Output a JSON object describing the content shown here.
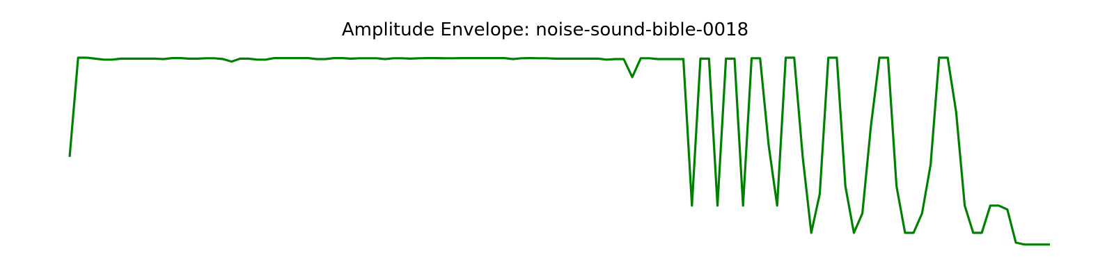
{
  "chart_data": {
    "type": "line",
    "title": "Amplitude Envelope: noise-sound-bible-0018",
    "xlabel": "",
    "ylabel": "",
    "axes_visible": false,
    "grid": false,
    "ylim": [
      0,
      1
    ],
    "series": [
      {
        "color": "#008000",
        "values": [
          0.49,
          1.0,
          1.0,
          0.995,
          0.99,
          0.99,
          0.995,
          0.995,
          0.995,
          0.995,
          0.995,
          0.993,
          0.998,
          0.998,
          0.995,
          0.995,
          0.997,
          0.997,
          0.993,
          0.98,
          0.995,
          0.995,
          0.99,
          0.99,
          0.998,
          0.998,
          0.998,
          0.998,
          0.998,
          0.993,
          0.993,
          0.998,
          0.998,
          0.995,
          0.997,
          0.997,
          0.997,
          0.993,
          0.997,
          0.997,
          0.995,
          0.997,
          0.998,
          0.998,
          0.997,
          0.997,
          0.998,
          0.998,
          0.998,
          0.998,
          0.998,
          0.998,
          0.993,
          0.997,
          0.998,
          0.997,
          0.997,
          0.995,
          0.995,
          0.995,
          0.995,
          0.995,
          0.995,
          0.99,
          0.993,
          0.993,
          0.9,
          0.997,
          0.997,
          0.993,
          0.993,
          0.993,
          0.993,
          0.24,
          0.995,
          0.995,
          0.24,
          0.995,
          0.995,
          0.24,
          0.997,
          0.997,
          0.55,
          0.24,
          1.0,
          1.0,
          0.49,
          0.1,
          0.3,
          1.0,
          1.0,
          0.34,
          0.1,
          0.2,
          0.65,
          1.0,
          1.0,
          0.34,
          0.1,
          0.1,
          0.2,
          0.45,
          1.0,
          1.0,
          0.72,
          0.24,
          0.1,
          0.1,
          0.24,
          0.24,
          0.22,
          0.05,
          0.04,
          0.04,
          0.04,
          0.04
        ]
      }
    ]
  }
}
